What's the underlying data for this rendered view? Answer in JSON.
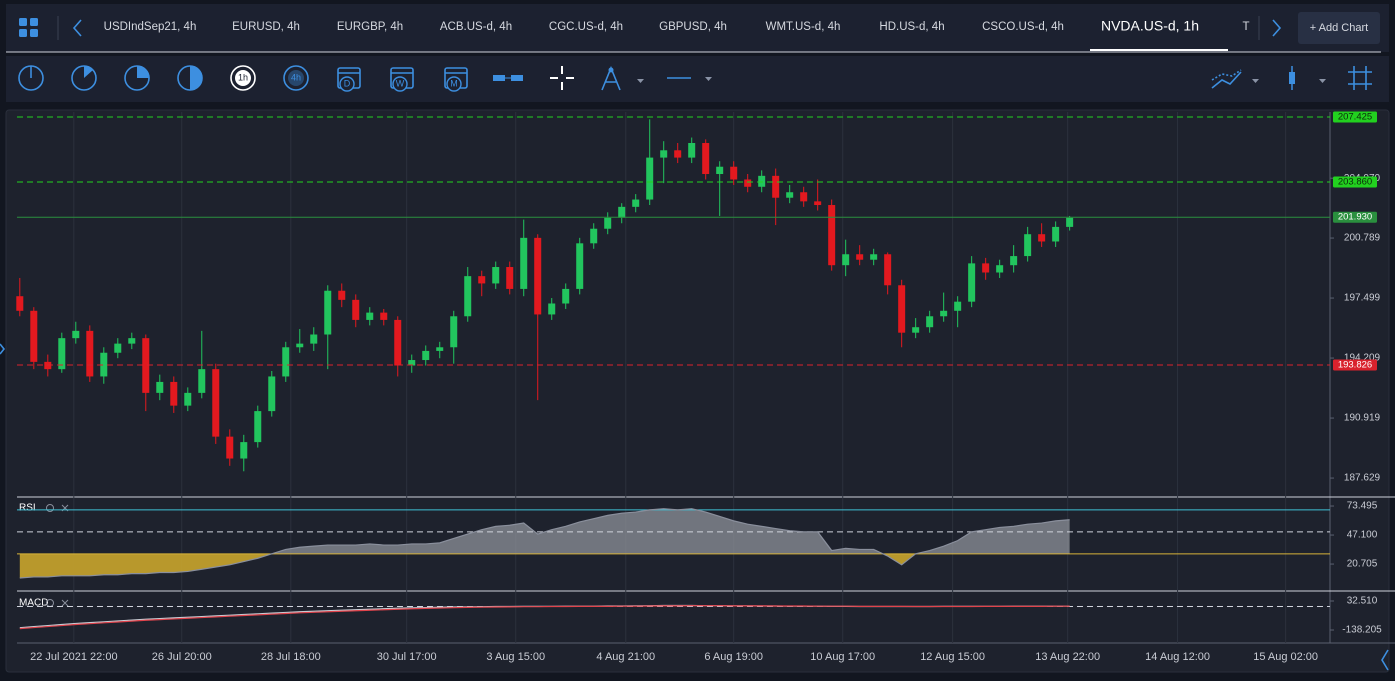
{
  "tabs": [
    "USDIndSep21, 4h",
    "EURUSD, 4h",
    "EURGBP, 4h",
    "ACB.US-d, 4h",
    "CGC.US-d, 4h",
    "GBPUSD, 4h",
    "WMT.US-d, 4h",
    "HD.US-d, 4h",
    "CSCO.US-d, 4h",
    "NVDA.US-d, 1h",
    "T"
  ],
  "add_chart": "+ Add Chart",
  "toolbar": {
    "labels": [
      "1h",
      "4h",
      "D",
      "W",
      "M"
    ]
  },
  "chart_data": {
    "type": "candlestick",
    "up_color": "#22c55e",
    "down_color": "#e3191f",
    "candles": [
      [
        197.6,
        198.6,
        196.5,
        196.8
      ],
      [
        196.8,
        197.0,
        193.6,
        194.0
      ],
      [
        194.0,
        194.4,
        193.2,
        193.6
      ],
      [
        193.6,
        195.6,
        193.4,
        195.3
      ],
      [
        195.3,
        196.2,
        195.0,
        195.7
      ],
      [
        195.7,
        196.0,
        192.9,
        193.2
      ],
      [
        193.2,
        194.8,
        192.8,
        194.5
      ],
      [
        194.5,
        195.3,
        194.2,
        195.0
      ],
      [
        195.0,
        195.6,
        194.7,
        195.3
      ],
      [
        195.3,
        195.5,
        191.3,
        192.3
      ],
      [
        192.3,
        193.3,
        191.9,
        192.9
      ],
      [
        192.9,
        193.2,
        191.2,
        191.6
      ],
      [
        191.6,
        192.6,
        191.3,
        192.3
      ],
      [
        192.3,
        195.7,
        192.0,
        193.6
      ],
      [
        193.6,
        193.9,
        189.5,
        189.9
      ],
      [
        189.9,
        190.3,
        188.3,
        188.7
      ],
      [
        188.7,
        190.0,
        188.0,
        189.6
      ],
      [
        189.6,
        191.6,
        189.3,
        191.3
      ],
      [
        191.3,
        193.5,
        191.0,
        193.2
      ],
      [
        193.2,
        195.1,
        192.9,
        194.8
      ],
      [
        194.8,
        195.8,
        194.5,
        195.0
      ],
      [
        195.0,
        195.9,
        194.6,
        195.5
      ],
      [
        195.5,
        198.2,
        193.6,
        197.9
      ],
      [
        197.9,
        198.3,
        197.0,
        197.4
      ],
      [
        197.4,
        197.7,
        195.9,
        196.3
      ],
      [
        196.3,
        197.0,
        196.0,
        196.7
      ],
      [
        196.7,
        196.9,
        196.0,
        196.3
      ],
      [
        196.3,
        196.5,
        193.2,
        193.8
      ],
      [
        193.8,
        194.4,
        193.4,
        194.1
      ],
      [
        194.1,
        194.9,
        193.8,
        194.6
      ],
      [
        194.6,
        195.1,
        194.2,
        194.8
      ],
      [
        194.8,
        196.8,
        193.9,
        196.5
      ],
      [
        196.5,
        199.2,
        196.2,
        198.7
      ],
      [
        198.7,
        199.0,
        197.6,
        198.3
      ],
      [
        198.3,
        199.5,
        198.0,
        199.2
      ],
      [
        199.2,
        199.5,
        197.7,
        198.0
      ],
      [
        198.0,
        201.8,
        197.6,
        200.8
      ],
      [
        200.8,
        201.0,
        191.9,
        196.6
      ],
      [
        196.6,
        197.5,
        196.3,
        197.2
      ],
      [
        197.2,
        198.3,
        196.9,
        198.0
      ],
      [
        198.0,
        200.8,
        197.7,
        200.5
      ],
      [
        200.5,
        201.6,
        200.2,
        201.3
      ],
      [
        201.3,
        202.2,
        201.0,
        201.9
      ],
      [
        201.9,
        202.7,
        201.6,
        202.5
      ],
      [
        202.5,
        203.2,
        202.2,
        202.9
      ],
      [
        202.9,
        207.3,
        202.6,
        205.2
      ],
      [
        205.2,
        206.1,
        203.8,
        205.6
      ],
      [
        205.6,
        206.0,
        204.9,
        205.2
      ],
      [
        205.2,
        206.3,
        204.9,
        206.0
      ],
      [
        206.0,
        206.2,
        204.0,
        204.3
      ],
      [
        204.3,
        205.0,
        202.0,
        204.7
      ],
      [
        204.7,
        205.0,
        203.7,
        204.0
      ],
      [
        204.0,
        204.3,
        203.3,
        203.6
      ],
      [
        203.6,
        204.5,
        203.3,
        204.2
      ],
      [
        204.2,
        204.6,
        201.5,
        203.0
      ],
      [
        203.0,
        203.7,
        202.7,
        203.3
      ],
      [
        203.3,
        203.6,
        202.5,
        202.8
      ],
      [
        202.8,
        204.0,
        202.3,
        202.6
      ],
      [
        202.6,
        202.9,
        199.0,
        199.3
      ],
      [
        199.3,
        200.7,
        198.7,
        199.9
      ],
      [
        199.9,
        200.4,
        199.3,
        199.6
      ],
      [
        199.6,
        200.2,
        199.3,
        199.9
      ],
      [
        199.9,
        200.0,
        197.7,
        198.2
      ],
      [
        198.2,
        198.5,
        194.8,
        195.6
      ],
      [
        195.6,
        196.4,
        195.3,
        195.9
      ],
      [
        195.9,
        196.8,
        195.6,
        196.5
      ],
      [
        196.5,
        197.8,
        196.2,
        196.8
      ],
      [
        196.8,
        197.6,
        195.9,
        197.3
      ],
      [
        197.3,
        199.8,
        197.0,
        199.4
      ],
      [
        199.4,
        199.7,
        198.5,
        198.9
      ],
      [
        198.9,
        199.6,
        198.6,
        199.3
      ],
      [
        199.3,
        200.4,
        198.9,
        199.8
      ],
      [
        199.8,
        201.4,
        199.5,
        201.0
      ],
      [
        201.0,
        201.6,
        200.3,
        200.6
      ],
      [
        200.6,
        201.7,
        200.3,
        201.4
      ],
      [
        201.4,
        202.0,
        201.2,
        201.9
      ]
    ],
    "ylim": [
      186.7,
      207.7
    ],
    "yticks": [
      187.629,
      190.919,
      194.209,
      197.499,
      200.789,
      {
        "value": 204.07,
        "label": "204.070"
      }
    ],
    "xlim": [
      -0.2,
      93.6
    ],
    "xticks": [
      {
        "value": 3.86,
        "label": "22 Jul 2021 22:00"
      },
      {
        "value": 11.57,
        "label": "26 Jul 20:00"
      },
      {
        "value": 19.36,
        "label": "28 Jul 18:00"
      },
      {
        "value": 27.64,
        "label": "30 Jul 17:00"
      },
      {
        "value": 35.43,
        "label": "3 Aug 15:00"
      },
      {
        "value": 43.29,
        "label": "4 Aug 21:00"
      },
      {
        "value": 51,
        "label": "6 Aug 19:00"
      },
      {
        "value": 58.79,
        "label": "10 Aug 17:00"
      },
      {
        "value": 66.64,
        "label": "12 Aug 15:00"
      },
      {
        "value": 74.86,
        "label": "13 Aug 22:00"
      },
      {
        "value": 82.71,
        "label": "14 Aug 12:00"
      },
      {
        "value": 90.43,
        "label": "15 Aug 02:00"
      }
    ],
    "xgrid": true,
    "levels": [
      {
        "value": 207.425,
        "color": "#22d11f",
        "text_color": "#0b2a0b",
        "dashed": true
      },
      {
        "value": 203.86,
        "label": "203.860",
        "color": "#22d11f",
        "text_color": "#0b2a0b",
        "dashed": true
      },
      {
        "value": 201.93,
        "label": "201.930",
        "color": "#2a8f3e",
        "text_color": "#ffffff",
        "dashed": false
      },
      {
        "value": 193.826,
        "color": "#d9222d",
        "text_color": "#ffffff",
        "dashed": true
      }
    ],
    "indicators": [
      {
        "name": "RSI",
        "color": "#8a8f9c",
        "fill_above": "#8e919a",
        "fill_below": "#c9a52c",
        "values": [
          8,
          9,
          9,
          10,
          10,
          10,
          11,
          11,
          12,
          12,
          13,
          13,
          14,
          16,
          18,
          20,
          23,
          26,
          30,
          34,
          36,
          37,
          38,
          38,
          38,
          39,
          38,
          38,
          39,
          39,
          40,
          44,
          48,
          52,
          55,
          56,
          58,
          48,
          52,
          55,
          59,
          62,
          65,
          67,
          68,
          70,
          71,
          70,
          71,
          68,
          64,
          60,
          57,
          55,
          53,
          51,
          50,
          50,
          33,
          35,
          34,
          34,
          28,
          20,
          30,
          33,
          37,
          42,
          50,
          52,
          54,
          55,
          57,
          58,
          60,
          61
        ],
        "ylim": [
          -2.9,
          80.8
        ],
        "yticks": [
          73.495,
          {
            "value": 47.1,
            "label": "47.100"
          },
          20.705
        ],
        "levels": [
          {
            "value": 70,
            "color": "#3fc1d6",
            "dashed": false
          },
          {
            "value": 50,
            "color": "#cfd3dc",
            "dashed": true
          },
          {
            "value": 30,
            "color": "#d8b43a",
            "dashed": false
          }
        ]
      },
      {
        "name": "MACD",
        "series": [
          {
            "color": "#c8cbd2",
            "values": [
              -125,
              -118,
              -112,
              -106,
              -100,
              -95,
              -90,
              -85,
              -80,
              -75,
              -71,
              -67,
              -63,
              -59,
              -55,
              -51,
              -47,
              -43,
              -39,
              -35,
              -31,
              -28,
              -25,
              -22,
              -19,
              -16,
              -13,
              -10,
              -8,
              -6,
              -4,
              -3,
              -2,
              -1,
              0,
              0,
              1,
              1,
              1,
              2,
              2,
              2,
              3,
              3,
              4,
              5,
              6,
              6,
              6,
              5,
              5,
              4,
              4,
              3,
              3,
              2,
              2,
              2,
              1,
              1,
              0,
              0,
              0,
              0,
              0,
              0,
              1,
              1,
              1,
              1,
              1,
              2,
              2,
              2,
              2,
              2
            ]
          },
          {
            "color": "#e0434b",
            "values": [
              -130,
              -124,
              -118,
              -112,
              -106,
              -101,
              -96,
              -91,
              -86,
              -81,
              -77,
              -73,
              -69,
              -65,
              -61,
              -57,
              -53,
              -49,
              -45,
              -41,
              -37,
              -34,
              -31,
              -28,
              -25,
              -22,
              -19,
              -16,
              -13,
              -11,
              -9,
              -7,
              -5,
              -4,
              -3,
              -2,
              -1,
              -1,
              0,
              0,
              1,
              1,
              1,
              2,
              2,
              3,
              4,
              4,
              5,
              5,
              5,
              4,
              4,
              4,
              3,
              3,
              3,
              2,
              2,
              2,
              1,
              1,
              1,
              1,
              0,
              0,
              0,
              0,
              0,
              1,
              1,
              1,
              1,
              1,
              2,
              2
            ]
          }
        ],
        "ylim": [
          -208.9,
          79.6
        ],
        "yticks": [
          {
            "value": 32.51,
            "label": "32.510"
          },
          -138.205
        ],
        "levels": [
          {
            "value": 0,
            "color": "#cfd3dc",
            "dashed": true
          }
        ]
      }
    ]
  }
}
